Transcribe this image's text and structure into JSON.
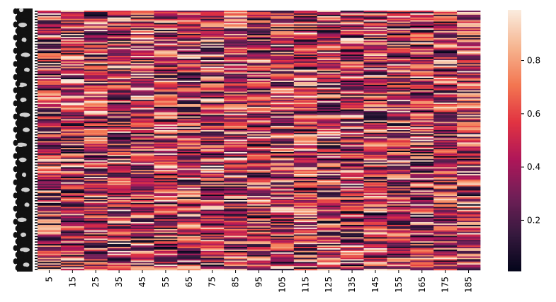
{
  "chart_data": {
    "type": "heatmap",
    "title": "",
    "xlabel": "",
    "ylabel": "",
    "x_tick_labels": [
      "5",
      "15",
      "25",
      "35",
      "45",
      "55",
      "65",
      "75",
      "85",
      "95",
      "105",
      "115",
      "125",
      "135",
      "145",
      "155",
      "165",
      "175",
      "185"
    ],
    "row_count": 189,
    "value_range": [
      0.01,
      0.99
    ],
    "colorbar": {
      "ticks": [
        0.2,
        0.4,
        0.6,
        0.8
      ],
      "tick_labels": [
        "0.2",
        "0.4",
        "0.6",
        "0.8"
      ]
    },
    "colormap": "rocket",
    "colormap_stops": [
      "#03051a",
      "#36193e",
      "#701f57",
      "#ae1759",
      "#e13342",
      "#f37651",
      "#f6b48f",
      "#faebdd"
    ],
    "rows_note_visible": "y-axis tick labels are an overlapping, illegible black stack"
  }
}
